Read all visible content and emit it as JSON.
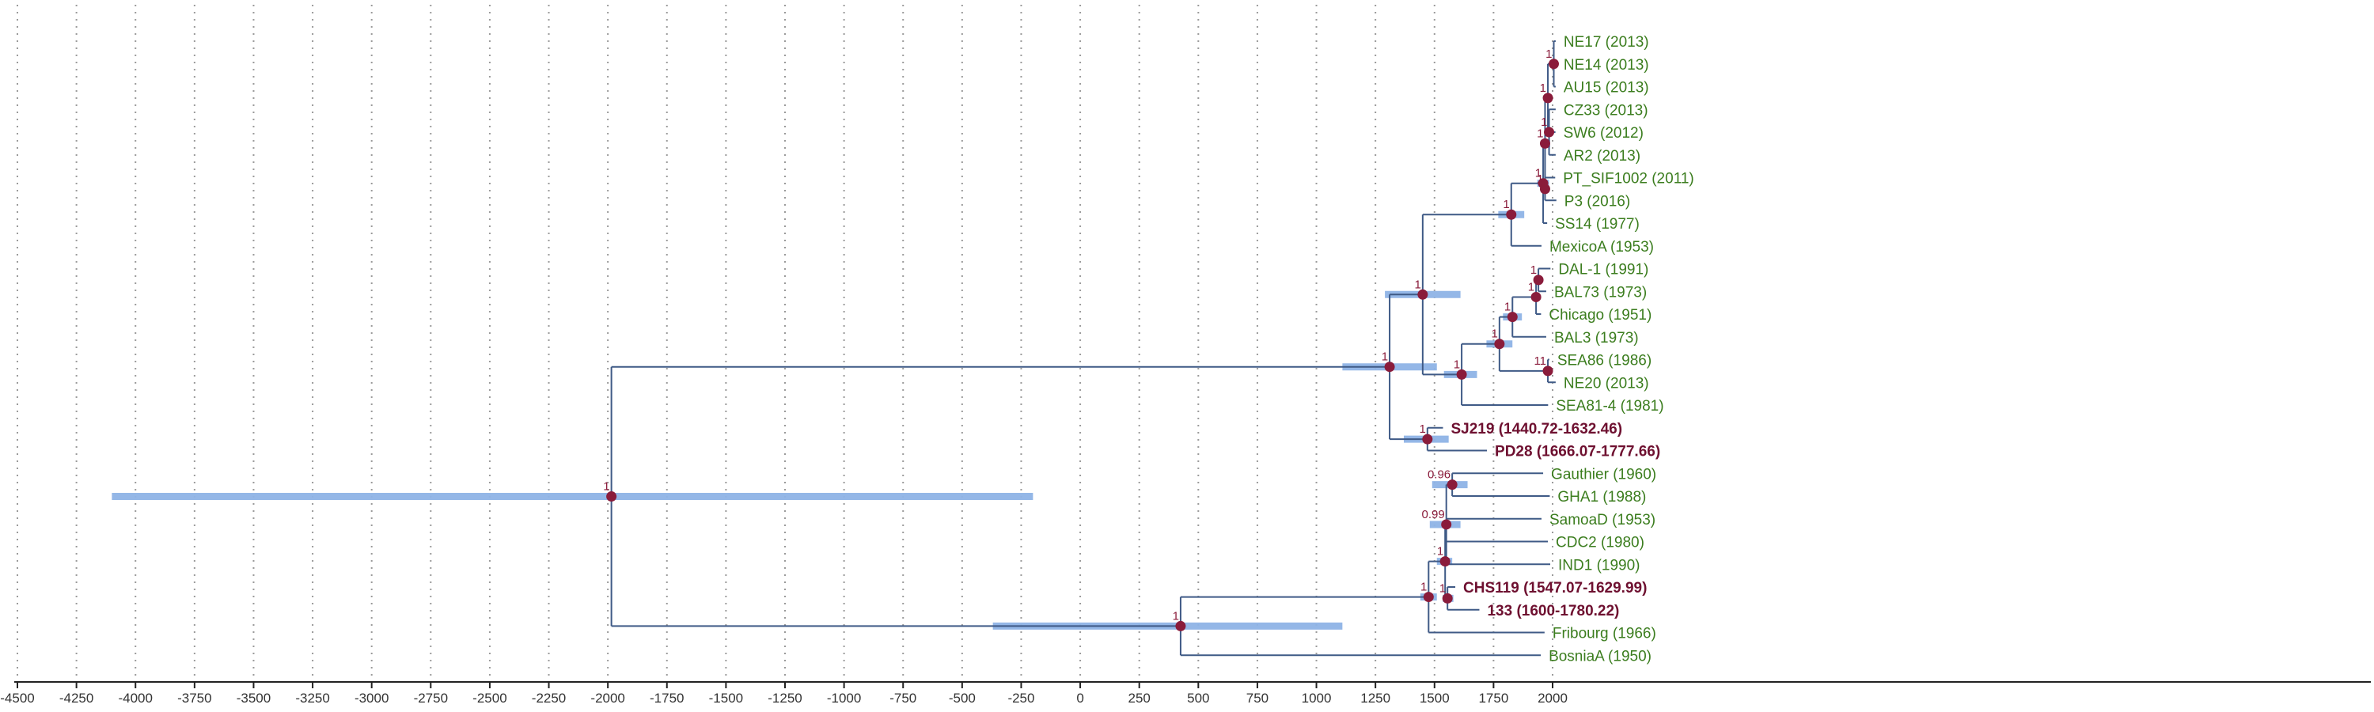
{
  "axis": {
    "min": -4500,
    "max": 2000,
    "ticks": [
      "-4500",
      "-4250",
      "-4000",
      "-3750",
      "-3500",
      "-3250",
      "-3000",
      "-2750",
      "-2500",
      "-2250",
      "-2000",
      "-1750",
      "-1500",
      "-1250",
      "-1000",
      "-750",
      "-500",
      "-250",
      "0",
      "250",
      "500",
      "750",
      "1000",
      "1250",
      "1500",
      "1750",
      "2000"
    ]
  },
  "colors": {
    "branch": "#3f5a86",
    "hpd_bar": "#8fb4e6",
    "node": "#8a1c3b",
    "modern_tip": "#3b7d1e",
    "ancient_tip": "#6e1030"
  },
  "tips": [
    {
      "id": "NE17",
      "label": "NE17 (2013)",
      "time": 2013,
      "ancient": false
    },
    {
      "id": "NE14",
      "label": "NE14 (2013)",
      "time": 2013,
      "ancient": false
    },
    {
      "id": "AU15",
      "label": "AU15 (2013)",
      "time": 2013,
      "ancient": false
    },
    {
      "id": "CZ33",
      "label": "CZ33 (2013)",
      "time": 2013,
      "ancient": false
    },
    {
      "id": "SW6",
      "label": "SW6 (2012)",
      "time": 2012,
      "ancient": false
    },
    {
      "id": "AR2",
      "label": "AR2 (2013)",
      "time": 2013,
      "ancient": false
    },
    {
      "id": "PT_SIF1002",
      "label": "PT_SIF1002 (2011)",
      "time": 2011,
      "ancient": false
    },
    {
      "id": "P3",
      "label": "P3 (2016)",
      "time": 2016,
      "ancient": false
    },
    {
      "id": "SS14",
      "label": "SS14 (1977)",
      "time": 1977,
      "ancient": false
    },
    {
      "id": "MexicoA",
      "label": "MexicoA (1953)",
      "time": 1953,
      "ancient": false
    },
    {
      "id": "DAL-1",
      "label": "DAL-1 (1991)",
      "time": 1991,
      "ancient": false
    },
    {
      "id": "BAL73",
      "label": "BAL73 (1973)",
      "time": 1973,
      "ancient": false
    },
    {
      "id": "Chicago",
      "label": "Chicago (1951)",
      "time": 1951,
      "ancient": false
    },
    {
      "id": "BAL3",
      "label": "BAL3 (1973)",
      "time": 1973,
      "ancient": false
    },
    {
      "id": "SEA86",
      "label": "SEA86 (1986)",
      "time": 1986,
      "ancient": false
    },
    {
      "id": "NE20",
      "label": "NE20 (2013)",
      "time": 2013,
      "ancient": false
    },
    {
      "id": "SEA81-4",
      "label": "SEA81-4 (1981)",
      "time": 1981,
      "ancient": false
    },
    {
      "id": "SJ219",
      "label": "SJ219 (1440.72-1632.46)",
      "time": 1536,
      "ancient": true
    },
    {
      "id": "PD28",
      "label": "PD28 (1666.07-1777.66)",
      "time": 1722,
      "ancient": true
    },
    {
      "id": "Gauthier",
      "label": "Gauthier (1960)",
      "time": 1960,
      "ancient": false
    },
    {
      "id": "GHA1",
      "label": "GHA1 (1988)",
      "time": 1988,
      "ancient": false
    },
    {
      "id": "SamoaD",
      "label": "SamoaD (1953)",
      "time": 1953,
      "ancient": false
    },
    {
      "id": "CDC2",
      "label": "CDC2 (1980)",
      "time": 1980,
      "ancient": false
    },
    {
      "id": "IND1",
      "label": "IND1 (1990)",
      "time": 1990,
      "ancient": false
    },
    {
      "id": "CHS119",
      "label": "CHS119 (1547.07-1629.99)",
      "time": 1588,
      "ancient": true
    },
    {
      "id": "133",
      "label": "133 (1600-1780.22)",
      "time": 1690,
      "ancient": true
    },
    {
      "id": "Fribourg",
      "label": "Fribourg (1966)",
      "time": 1966,
      "ancient": false
    },
    {
      "id": "BosniaA",
      "label": "BosniaA (1950)",
      "time": 1950,
      "ancient": false
    }
  ],
  "nodes": [
    {
      "id": "root",
      "time": -1985,
      "support": "1",
      "hpd": [
        -4100,
        -200
      ],
      "children": [
        "tpa",
        "ypa"
      ]
    },
    {
      "id": "tpa",
      "time": 1310,
      "support": "1",
      "hpd": [
        1110,
        1510
      ],
      "children": [
        "tpa_a",
        "sj_pd"
      ]
    },
    {
      "id": "tpa_a",
      "time": 1450,
      "support": "1",
      "hpd": [
        1290,
        1610
      ],
      "children": [
        "ss14_clade",
        "nichols"
      ]
    },
    {
      "id": "ss14_clade",
      "time": 1825,
      "support": "1",
      "hpd": [
        1770,
        1880
      ],
      "children": [
        "ss14_sub",
        "MexicoA"
      ]
    },
    {
      "id": "ss14_sub",
      "time": 1960,
      "support": "1",
      "hpd": [
        1935,
        1985
      ],
      "children": [
        "modern_ss14",
        "SS14"
      ]
    },
    {
      "id": "modern_ss14",
      "time": 1968,
      "support": "1",
      "hpd": [
        1950,
        1990
      ],
      "children": [
        "ne_group",
        "pt_group"
      ]
    },
    {
      "id": "ne_group",
      "time": 1980,
      "support": "1",
      "hpd": [
        1965,
        1995
      ],
      "children": [
        "ne_pair",
        "cz_group"
      ]
    },
    {
      "id": "ne_pair",
      "time": 2005,
      "support": "1",
      "hpd": [
        1995,
        2012
      ],
      "children": [
        "NE17",
        "NE14",
        "AU15"
      ]
    },
    {
      "id": "cz_group",
      "time": 1985,
      "support": "1",
      "hpd": [
        1970,
        2000
      ],
      "children": [
        "CZ33",
        "SW6",
        "AR2"
      ]
    },
    {
      "id": "pt_group",
      "time": 1968,
      "support": "1",
      "hpd": [
        1950,
        1985
      ],
      "children": [
        "PT_SIF1002",
        "P3"
      ]
    },
    {
      "id": "nichols",
      "time": 1615,
      "support": "1",
      "hpd": [
        1540,
        1680
      ],
      "children": [
        "nichols_a",
        "SEA81-4"
      ]
    },
    {
      "id": "nichols_a",
      "time": 1775,
      "support": "1",
      "hpd": [
        1720,
        1830
      ],
      "children": [
        "nichols_b",
        "sea_pair"
      ]
    },
    {
      "id": "nichols_b",
      "time": 1830,
      "support": "1",
      "hpd": [
        1790,
        1870
      ],
      "children": [
        "bal_group",
        "BAL3"
      ]
    },
    {
      "id": "bal_group",
      "time": 1930,
      "support": "1",
      "hpd": [
        1915,
        1945
      ],
      "children": [
        "dal_pair",
        "Chicago"
      ]
    },
    {
      "id": "dal_pair",
      "time": 1940,
      "support": "1",
      "hpd": [
        1925,
        1955
      ],
      "children": [
        "DAL-1",
        "BAL73"
      ]
    },
    {
      "id": "sea_pair",
      "time": 1980,
      "support": "11",
      "hpd": [
        1970,
        1990
      ],
      "children": [
        "SEA86",
        "NE20"
      ]
    },
    {
      "id": "sj_pd",
      "time": 1470,
      "support": "1",
      "hpd": [
        1370,
        1560
      ],
      "children": [
        "SJ219",
        "PD28"
      ]
    },
    {
      "id": "ypa",
      "time": 425,
      "support": "1",
      "hpd": [
        -370,
        1110
      ],
      "children": [
        "ypa_a",
        "BosniaA"
      ]
    },
    {
      "id": "ypa_a",
      "time": 1475,
      "support": "1",
      "hpd": [
        1440,
        1510
      ],
      "children": [
        "ypa_b",
        "Fribourg"
      ]
    },
    {
      "id": "ypa_b",
      "time": 1545,
      "support": "1",
      "hpd": [
        1510,
        1575
      ],
      "children": [
        "yaws",
        "chs_133"
      ]
    },
    {
      "id": "yaws",
      "time": 1550,
      "support": "0.99",
      "hpd": [
        1480,
        1610
      ],
      "children": [
        "gauthier_grp",
        "SamoaD",
        "CDC2",
        "IND1"
      ]
    },
    {
      "id": "gauthier_grp",
      "time": 1575,
      "support": "0.96",
      "hpd": [
        1490,
        1640
      ],
      "children": [
        "Gauthier",
        "GHA1"
      ]
    },
    {
      "id": "chs_133",
      "time": 1555,
      "support": "1",
      "hpd": [
        1535,
        1580
      ],
      "children": [
        "CHS119",
        "133"
      ]
    }
  ]
}
